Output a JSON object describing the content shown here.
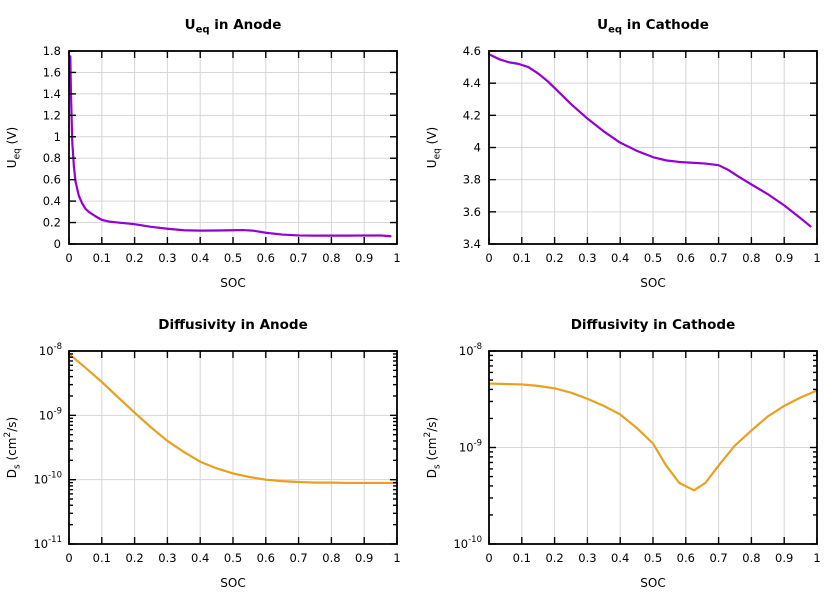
{
  "figure": {
    "background": "#ffffff",
    "grid_color": "#d6d6d6",
    "axis_color": "#000000",
    "xlabel": "SOC"
  },
  "chart_data": [
    {
      "id": "ueq-anode",
      "type": "line",
      "title_segments": [
        {
          "text": "U"
        },
        {
          "text": "eq",
          "sub": true
        },
        {
          "text": " in Anode"
        }
      ],
      "ylabel_segments": [
        {
          "text": "U"
        },
        {
          "text": "eq",
          "sub": true
        },
        {
          "text": " (V)"
        }
      ],
      "xlabel": "SOC",
      "color": "#9400d3",
      "yscale": "linear",
      "ylim": [
        0,
        1.8
      ],
      "yticks": [
        {
          "v": 0,
          "label": "0"
        },
        {
          "v": 0.2,
          "label": "0.2"
        },
        {
          "v": 0.4,
          "label": "0.4"
        },
        {
          "v": 0.6,
          "label": "0.6"
        },
        {
          "v": 0.8,
          "label": "0.8"
        },
        {
          "v": 1,
          "label": "1"
        },
        {
          "v": 1.2,
          "label": "1.2"
        },
        {
          "v": 1.4,
          "label": "1.4"
        },
        {
          "v": 1.6,
          "label": "1.6"
        },
        {
          "v": 1.8,
          "label": "1.8"
        }
      ],
      "xlim": [
        0,
        1
      ],
      "xticks": [
        {
          "v": 0,
          "label": "0"
        },
        {
          "v": 0.1,
          "label": "0.1"
        },
        {
          "v": 0.2,
          "label": "0.2"
        },
        {
          "v": 0.3,
          "label": "0.3"
        },
        {
          "v": 0.4,
          "label": "0.4"
        },
        {
          "v": 0.5,
          "label": "0.5"
        },
        {
          "v": 0.6,
          "label": "0.6"
        },
        {
          "v": 0.7,
          "label": "0.7"
        },
        {
          "v": 0.8,
          "label": "0.8"
        },
        {
          "v": 0.9,
          "label": "0.9"
        },
        {
          "v": 1,
          "label": "1"
        }
      ],
      "x": [
        0.004,
        0.006,
        0.01,
        0.015,
        0.02,
        0.03,
        0.04,
        0.05,
        0.06,
        0.08,
        0.1,
        0.12,
        0.15,
        0.2,
        0.25,
        0.3,
        0.35,
        0.4,
        0.45,
        0.5,
        0.53,
        0.56,
        0.6,
        0.65,
        0.7,
        0.75,
        0.8,
        0.85,
        0.9,
        0.95,
        0.98
      ],
      "y": [
        1.75,
        1.4,
        0.95,
        0.72,
        0.58,
        0.45,
        0.38,
        0.33,
        0.3,
        0.26,
        0.225,
        0.21,
        0.2,
        0.185,
        0.16,
        0.142,
        0.128,
        0.125,
        0.126,
        0.128,
        0.13,
        0.125,
        0.105,
        0.088,
        0.08,
        0.078,
        0.078,
        0.078,
        0.079,
        0.08,
        0.072
      ]
    },
    {
      "id": "ueq-cathode",
      "type": "line",
      "title_segments": [
        {
          "text": "U"
        },
        {
          "text": "eq",
          "sub": true
        },
        {
          "text": " in Cathode"
        }
      ],
      "ylabel_segments": [
        {
          "text": "U"
        },
        {
          "text": "eq",
          "sub": true
        },
        {
          "text": " (V)"
        }
      ],
      "xlabel": "SOC",
      "color": "#9400d3",
      "yscale": "linear",
      "ylim": [
        3.4,
        4.6
      ],
      "yticks": [
        {
          "v": 3.4,
          "label": "3.4"
        },
        {
          "v": 3.6,
          "label": "3.6"
        },
        {
          "v": 3.8,
          "label": "3.8"
        },
        {
          "v": 4,
          "label": "4"
        },
        {
          "v": 4.2,
          "label": "4.2"
        },
        {
          "v": 4.4,
          "label": "4.4"
        },
        {
          "v": 4.6,
          "label": "4.6"
        }
      ],
      "xlim": [
        0,
        1
      ],
      "xticks": [
        {
          "v": 0,
          "label": "0"
        },
        {
          "v": 0.1,
          "label": "0.1"
        },
        {
          "v": 0.2,
          "label": "0.2"
        },
        {
          "v": 0.3,
          "label": "0.3"
        },
        {
          "v": 0.4,
          "label": "0.4"
        },
        {
          "v": 0.5,
          "label": "0.5"
        },
        {
          "v": 0.6,
          "label": "0.6"
        },
        {
          "v": 0.7,
          "label": "0.7"
        },
        {
          "v": 0.8,
          "label": "0.8"
        },
        {
          "v": 0.9,
          "label": "0.9"
        },
        {
          "v": 1,
          "label": "1"
        }
      ],
      "x": [
        0,
        0.03,
        0.06,
        0.09,
        0.12,
        0.15,
        0.18,
        0.21,
        0.25,
        0.3,
        0.35,
        0.4,
        0.45,
        0.5,
        0.54,
        0.58,
        0.62,
        0.66,
        0.7,
        0.73,
        0.76,
        0.8,
        0.85,
        0.9,
        0.95,
        0.98
      ],
      "y": [
        4.58,
        4.55,
        4.53,
        4.52,
        4.5,
        4.46,
        4.41,
        4.35,
        4.27,
        4.18,
        4.1,
        4.03,
        3.98,
        3.94,
        3.92,
        3.91,
        3.905,
        3.9,
        3.89,
        3.86,
        3.82,
        3.77,
        3.71,
        3.64,
        3.56,
        3.51
      ]
    },
    {
      "id": "diff-anode",
      "type": "line",
      "title_segments": [
        {
          "text": "Diffusivity in Anode"
        }
      ],
      "ylabel_segments": [
        {
          "text": "D"
        },
        {
          "text": "s",
          "sub": true
        },
        {
          "text": " (cm"
        },
        {
          "text": "2",
          "sup": true
        },
        {
          "text": "/s)"
        }
      ],
      "xlabel": "SOC",
      "color": "#e8a020",
      "yscale": "log",
      "ylim_exp": [
        -11,
        -8
      ],
      "ytick_exps": [
        -11,
        -10,
        -9,
        -8
      ],
      "xlim": [
        0,
        1
      ],
      "xticks": [
        {
          "v": 0,
          "label": "0"
        },
        {
          "v": 0.1,
          "label": "0.1"
        },
        {
          "v": 0.2,
          "label": "0.2"
        },
        {
          "v": 0.3,
          "label": "0.3"
        },
        {
          "v": 0.4,
          "label": "0.4"
        },
        {
          "v": 0.5,
          "label": "0.5"
        },
        {
          "v": 0.6,
          "label": "0.6"
        },
        {
          "v": 0.7,
          "label": "0.7"
        },
        {
          "v": 0.8,
          "label": "0.8"
        },
        {
          "v": 0.9,
          "label": "0.9"
        },
        {
          "v": 1,
          "label": "1"
        }
      ],
      "x": [
        0,
        0.05,
        0.1,
        0.15,
        0.2,
        0.25,
        0.3,
        0.35,
        0.4,
        0.45,
        0.5,
        0.55,
        0.6,
        0.65,
        0.7,
        0.75,
        0.8,
        0.85,
        0.9,
        0.95,
        1
      ],
      "y": [
        9e-09,
        5.5e-09,
        3.3e-09,
        1.9e-09,
        1.1e-09,
        6.5e-10,
        4e-10,
        2.7e-10,
        1.9e-10,
        1.5e-10,
        1.25e-10,
        1.1e-10,
        1e-10,
        9.5e-11,
        9.2e-11,
        9e-11,
        9e-11,
        8.9e-11,
        8.9e-11,
        8.9e-11,
        8.9e-11
      ]
    },
    {
      "id": "diff-cathode",
      "type": "line",
      "title_segments": [
        {
          "text": "Diffusivity in Cathode"
        }
      ],
      "ylabel_segments": [
        {
          "text": "D"
        },
        {
          "text": "s",
          "sub": true
        },
        {
          "text": " (cm"
        },
        {
          "text": "2",
          "sup": true
        },
        {
          "text": "/s)"
        }
      ],
      "xlabel": "SOC",
      "color": "#e8a020",
      "yscale": "log",
      "ylim_exp": [
        -10,
        -8
      ],
      "ytick_exps": [
        -10,
        -9,
        -8
      ],
      "xlim": [
        0,
        1
      ],
      "xticks": [
        {
          "v": 0,
          "label": "0"
        },
        {
          "v": 0.1,
          "label": "0.1"
        },
        {
          "v": 0.2,
          "label": "0.2"
        },
        {
          "v": 0.3,
          "label": "0.3"
        },
        {
          "v": 0.4,
          "label": "0.4"
        },
        {
          "v": 0.5,
          "label": "0.5"
        },
        {
          "v": 0.6,
          "label": "0.6"
        },
        {
          "v": 0.7,
          "label": "0.7"
        },
        {
          "v": 0.8,
          "label": "0.8"
        },
        {
          "v": 0.9,
          "label": "0.9"
        },
        {
          "v": 1,
          "label": "1"
        }
      ],
      "x": [
        0,
        0.05,
        0.1,
        0.15,
        0.2,
        0.25,
        0.3,
        0.35,
        0.4,
        0.45,
        0.5,
        0.54,
        0.58,
        0.625,
        0.66,
        0.7,
        0.75,
        0.8,
        0.85,
        0.9,
        0.95,
        1
      ],
      "y": [
        4.6e-09,
        4.55e-09,
        4.5e-09,
        4.35e-09,
        4.1e-09,
        3.7e-09,
        3.2e-09,
        2.7e-09,
        2.2e-09,
        1.6e-09,
        1.1e-09,
        6.5e-10,
        4.3e-10,
        3.6e-10,
        4.3e-10,
        6.5e-10,
        1.05e-09,
        1.5e-09,
        2.1e-09,
        2.7e-09,
        3.3e-09,
        3.9e-09
      ]
    }
  ]
}
